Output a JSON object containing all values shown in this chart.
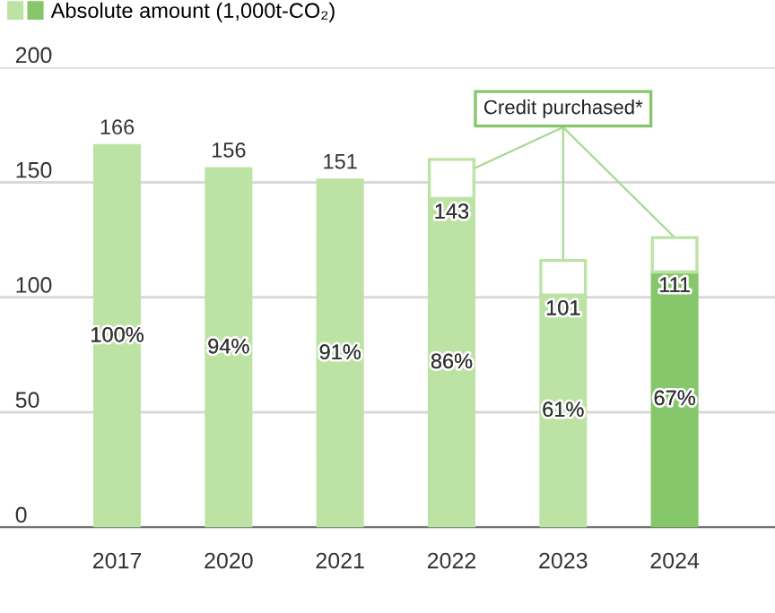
{
  "chart_data": {
    "type": "bar",
    "stacked": true,
    "categories": [
      "2017",
      "2020",
      "2021",
      "2022",
      "2023",
      "2024"
    ],
    "series": [
      {
        "name": "Absolute amount (1,000t-CO₂)",
        "colors": [
          "#bce3a4",
          "#bce3a4",
          "#bce3a4",
          "#bce3a4",
          "#bce3a4",
          "#85c76a"
        ],
        "values": [
          166,
          156,
          151,
          143,
          101,
          111
        ],
        "value_labels": [
          "166",
          "156",
          "151",
          "143",
          "101",
          "111"
        ]
      },
      {
        "color": "#bce3a4",
        "values": [
          null,
          null,
          null,
          17,
          15,
          15
        ]
      }
    ],
    "ylim": [
      0,
      200
    ],
    "yticks": [
      0,
      50,
      100,
      150,
      200
    ],
    "grid": "y",
    "legend": "top left",
    "annotations": [
      "100%",
      "94%",
      "91%",
      "86%",
      "61%",
      "67%",
      {
        "text": "Credit purchased*",
        "x": "2023",
        "y": 116
      }
    ]
  }
}
